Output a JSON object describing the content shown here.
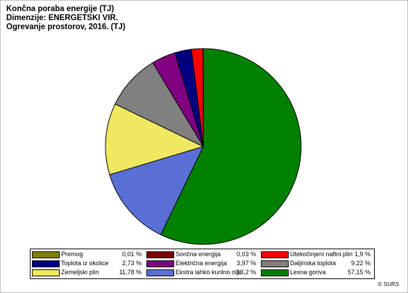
{
  "chart_data": {
    "type": "pie",
    "title_lines": [
      "Končna poraba energije (TJ)",
      "Dimenzije: ENERGETSKI VIR.",
      "Ogrevanje prostorov, 2016. (TJ)"
    ],
    "unit": "%",
    "slices": [
      {
        "label": "Premog",
        "value": 0.01,
        "value_text": "0,01 %",
        "color": "#808000"
      },
      {
        "label": "Sončna energija",
        "value": 0.03,
        "value_text": "0,03 %",
        "color": "#800000"
      },
      {
        "label": "Utekočinjeni naftni plin",
        "value": 1.9,
        "value_text": "1,9 %",
        "color": "#ff0000"
      },
      {
        "label": "Toplota iz okolice",
        "value": 2.73,
        "value_text": "2,73 %",
        "color": "#000080"
      },
      {
        "label": "Električna energija",
        "value": 3.97,
        "value_text": "3,97 %",
        "color": "#800080"
      },
      {
        "label": "Daljinska toplota",
        "value": 9.22,
        "value_text": "9,22 %",
        "color": "#808080"
      },
      {
        "label": "Zemeljski plin",
        "value": 11.78,
        "value_text": "11,78 %",
        "color": "#f0e860"
      },
      {
        "label": "Ekstra lahko kurilno olje",
        "value": 13.2,
        "value_text": "13,2 %",
        "color": "#5a6fd6"
      },
      {
        "label": "Lesna goriva",
        "value": 57.15,
        "value_text": "57,15 %",
        "color": "#008000"
      }
    ],
    "pie_order": [
      "Lesna goriva",
      "Ekstra lahko kurilno olje",
      "Zemeljski plin",
      "Daljinska toplota",
      "Električna energija",
      "Toplota iz okolice",
      "Utekočinjeni naftni plin",
      "Sončna energija",
      "Premog"
    ],
    "pie_direction": "counter-clockwise from top",
    "legend_placement": "bottom"
  },
  "source": "© SURS"
}
